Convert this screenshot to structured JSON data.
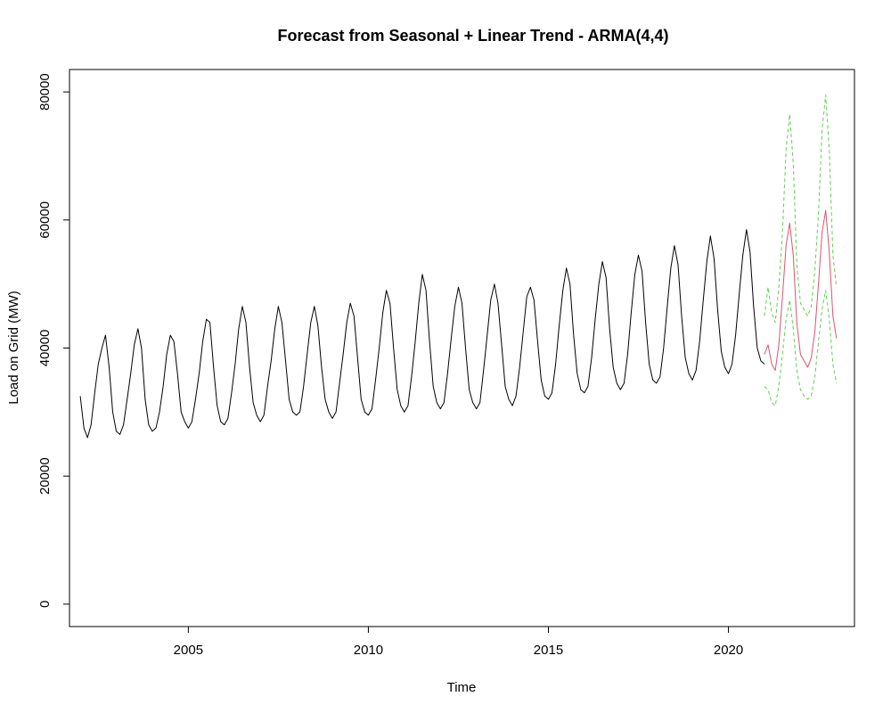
{
  "chart_data": {
    "type": "line",
    "title": "Forecast from Seasonal + Linear Trend - ARMA(4,4)",
    "xlabel": "Time",
    "ylabel": "Load on Grid (MW)",
    "xlim": [
      2001.7,
      2023.5
    ],
    "ylim": [
      -3500,
      83500
    ],
    "x_ticks": [
      2005,
      2010,
      2015,
      2020
    ],
    "y_ticks": [
      0,
      20000,
      40000,
      60000,
      80000
    ],
    "x_tick_labels": [
      "2005",
      "2010",
      "2015",
      "2020"
    ],
    "y_tick_labels": [
      "0",
      "20000",
      "40000",
      "60000",
      "80000"
    ],
    "grid": false,
    "colors": {
      "observed": "#000000",
      "forecast": "#DF536B",
      "interval": "#61D04F"
    },
    "series": [
      {
        "role": "observed",
        "x": [
          2002.0,
          2002.1,
          2002.2,
          2002.3,
          2002.4,
          2002.5,
          2002.6,
          2002.7,
          2002.8,
          2002.9,
          2003.0,
          2003.1,
          2003.2,
          2003.3,
          2003.4,
          2003.5,
          2003.6,
          2003.7,
          2003.8,
          2003.9,
          2004.0,
          2004.1,
          2004.2,
          2004.3,
          2004.4,
          2004.5,
          2004.6,
          2004.7,
          2004.8,
          2004.9,
          2005.0,
          2005.1,
          2005.2,
          2005.3,
          2005.4,
          2005.5,
          2005.6,
          2005.7,
          2005.8,
          2005.9,
          2006.0,
          2006.1,
          2006.2,
          2006.3,
          2006.4,
          2006.5,
          2006.6,
          2006.7,
          2006.8,
          2006.9,
          2007.0,
          2007.1,
          2007.2,
          2007.3,
          2007.4,
          2007.5,
          2007.6,
          2007.7,
          2007.8,
          2007.9,
          2008.0,
          2008.1,
          2008.2,
          2008.3,
          2008.4,
          2008.5,
          2008.6,
          2008.7,
          2008.8,
          2008.9,
          2009.0,
          2009.1,
          2009.2,
          2009.3,
          2009.4,
          2009.5,
          2009.6,
          2009.7,
          2009.8,
          2009.9,
          2010.0,
          2010.1,
          2010.2,
          2010.3,
          2010.4,
          2010.5,
          2010.6,
          2010.7,
          2010.8,
          2010.9,
          2011.0,
          2011.1,
          2011.2,
          2011.3,
          2011.4,
          2011.5,
          2011.6,
          2011.7,
          2011.8,
          2011.9,
          2012.0,
          2012.1,
          2012.2,
          2012.3,
          2012.4,
          2012.5,
          2012.6,
          2012.7,
          2012.8,
          2012.9,
          2013.0,
          2013.1,
          2013.2,
          2013.3,
          2013.4,
          2013.5,
          2013.6,
          2013.7,
          2013.8,
          2013.9,
          2014.0,
          2014.1,
          2014.2,
          2014.3,
          2014.4,
          2014.5,
          2014.6,
          2014.7,
          2014.8,
          2014.9,
          2015.0,
          2015.1,
          2015.2,
          2015.3,
          2015.4,
          2015.5,
          2015.6,
          2015.7,
          2015.8,
          2015.9,
          2016.0,
          2016.1,
          2016.2,
          2016.3,
          2016.4,
          2016.5,
          2016.6,
          2016.7,
          2016.8,
          2016.9,
          2017.0,
          2017.1,
          2017.2,
          2017.3,
          2017.4,
          2017.5,
          2017.6,
          2017.7,
          2017.8,
          2017.9,
          2018.0,
          2018.1,
          2018.2,
          2018.3,
          2018.4,
          2018.5,
          2018.6,
          2018.7,
          2018.8,
          2018.9,
          2019.0,
          2019.1,
          2019.2,
          2019.3,
          2019.4,
          2019.5,
          2019.6,
          2019.7,
          2019.8,
          2019.9,
          2020.0,
          2020.1,
          2020.2,
          2020.3,
          2020.4,
          2020.5,
          2020.6,
          2020.7,
          2020.8,
          2020.9,
          2021.0
        ],
        "y": [
          32500,
          27500,
          26000,
          28000,
          33000,
          37500,
          40000,
          42000,
          37000,
          30000,
          27000,
          26500,
          28000,
          32000,
          36000,
          40500,
          43000,
          40000,
          32000,
          28000,
          27000,
          27500,
          30000,
          34000,
          39000,
          42000,
          41000,
          36000,
          30000,
          28500,
          27500,
          28500,
          32000,
          36000,
          41000,
          44500,
          44000,
          37000,
          31000,
          28500,
          28000,
          29000,
          33000,
          37500,
          43000,
          46500,
          44000,
          37000,
          31500,
          29500,
          28500,
          29500,
          34000,
          38000,
          43000,
          46500,
          44000,
          38000,
          32000,
          30000,
          29500,
          30000,
          34000,
          39000,
          44000,
          46500,
          43500,
          37000,
          32000,
          30000,
          29000,
          30000,
          34500,
          39000,
          44000,
          47000,
          45000,
          38500,
          32000,
          30000,
          29500,
          30500,
          35000,
          40000,
          45500,
          49000,
          47000,
          40000,
          33500,
          31000,
          30000,
          31000,
          35500,
          41000,
          47000,
          51500,
          49000,
          41000,
          34000,
          31500,
          30500,
          31500,
          36000,
          41500,
          46500,
          49500,
          47000,
          40000,
          33500,
          31500,
          30500,
          31500,
          36500,
          42000,
          47500,
          50000,
          47000,
          40500,
          34000,
          32000,
          31000,
          32500,
          37000,
          42500,
          48000,
          49500,
          47500,
          41000,
          35000,
          32500,
          32000,
          33000,
          37500,
          43500,
          49000,
          52500,
          50000,
          42000,
          36000,
          33500,
          33000,
          34000,
          38500,
          44500,
          50000,
          53500,
          51000,
          43000,
          37000,
          34500,
          33500,
          34500,
          39000,
          45500,
          51500,
          54500,
          52000,
          44000,
          37500,
          35000,
          34500,
          35500,
          40000,
          46500,
          52500,
          56000,
          53000,
          45000,
          38500,
          36000,
          35000,
          36500,
          41000,
          47500,
          53500,
          57500,
          54000,
          46000,
          39500,
          37000,
          36000,
          37500,
          42000,
          48500,
          54500,
          58500,
          55000,
          46500,
          40000,
          38000,
          37500
        ]
      },
      {
        "role": "forecast",
        "x": [
          2021.0,
          2021.1,
          2021.2,
          2021.3,
          2021.4,
          2021.5,
          2021.6,
          2021.7,
          2021.8,
          2021.9,
          2022.0,
          2022.1,
          2022.2,
          2022.3,
          2022.4,
          2022.5,
          2022.6,
          2022.7,
          2022.8,
          2022.9,
          2023.0
        ],
        "y": [
          39000,
          40500,
          37500,
          36500,
          40500,
          48000,
          56000,
          59500,
          54500,
          44000,
          39000,
          38000,
          37000,
          38500,
          42500,
          50000,
          58000,
          61500,
          55000,
          45000,
          41500
        ]
      },
      {
        "role": "interval",
        "x": [
          2021.0,
          2021.1,
          2021.2,
          2021.3,
          2021.4,
          2021.5,
          2021.6,
          2021.7,
          2021.8,
          2021.9,
          2022.0,
          2022.1,
          2022.2,
          2022.3,
          2022.4,
          2022.5,
          2022.6,
          2022.7,
          2022.8,
          2022.9,
          2023.0
        ],
        "y": [
          45000,
          49500,
          45500,
          44000,
          49500,
          58000,
          71000,
          76500,
          69000,
          53000,
          47000,
          46000,
          45000,
          46500,
          52000,
          61000,
          74000,
          79500,
          71000,
          54500,
          49500
        ]
      },
      {
        "role": "interval",
        "x": [
          2021.0,
          2021.1,
          2021.2,
          2021.3,
          2021.4,
          2021.5,
          2021.6,
          2021.7,
          2021.8,
          2021.9,
          2022.0,
          2022.1,
          2022.2,
          2022.3,
          2022.4,
          2022.5,
          2022.6,
          2022.7,
          2022.8,
          2022.9,
          2023.0
        ],
        "y": [
          34000,
          33500,
          31500,
          31000,
          34000,
          39000,
          44500,
          47500,
          43000,
          36500,
          33500,
          32500,
          32000,
          32500,
          35500,
          41000,
          46000,
          49000,
          44500,
          37500,
          34500
        ]
      }
    ]
  }
}
